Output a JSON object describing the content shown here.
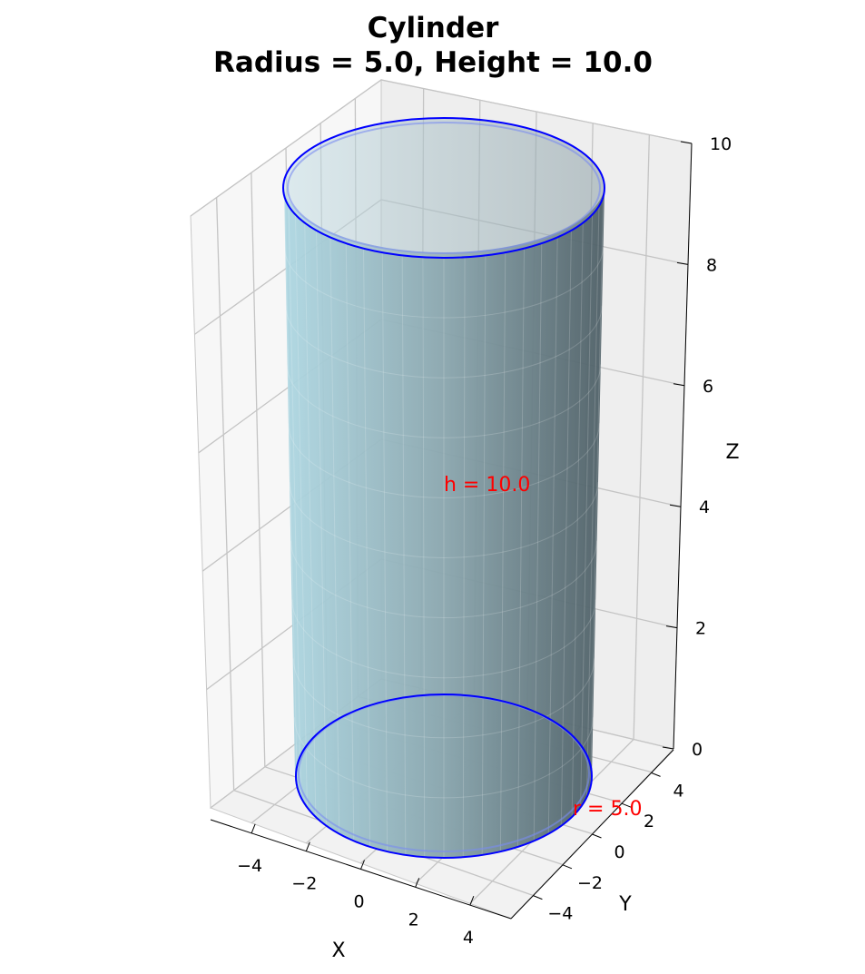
{
  "chart_data": {
    "type": "3d-surface",
    "title_lines": [
      "Cylinder",
      "Radius = 5.0, Height = 10.0"
    ],
    "xlabel": "X",
    "ylabel": "Y",
    "zlabel": "Z",
    "radius": 5.0,
    "height": 10.0,
    "xlim": [
      -5.5,
      5.5
    ],
    "ylim": [
      -5.5,
      5.5
    ],
    "zlim": [
      0,
      10
    ],
    "x_ticks": [
      "−4",
      "−2",
      "0",
      "2",
      "4"
    ],
    "y_ticks": [
      "−4",
      "−2",
      "0",
      "2",
      "4"
    ],
    "z_ticks": [
      "0",
      "2",
      "4",
      "6",
      "8",
      "10"
    ],
    "annotations": [
      {
        "text": "h = 10.0",
        "x": 0,
        "y": 0,
        "z": 5.0
      },
      {
        "text": "r = 5.0",
        "x": 5.0,
        "y": 0,
        "z": 0
      }
    ],
    "grid": true,
    "colors": {
      "surface": "#add8e6",
      "edge": "#0000ff",
      "annotation": "#ff0000",
      "pane": "#f2f2f2"
    }
  }
}
